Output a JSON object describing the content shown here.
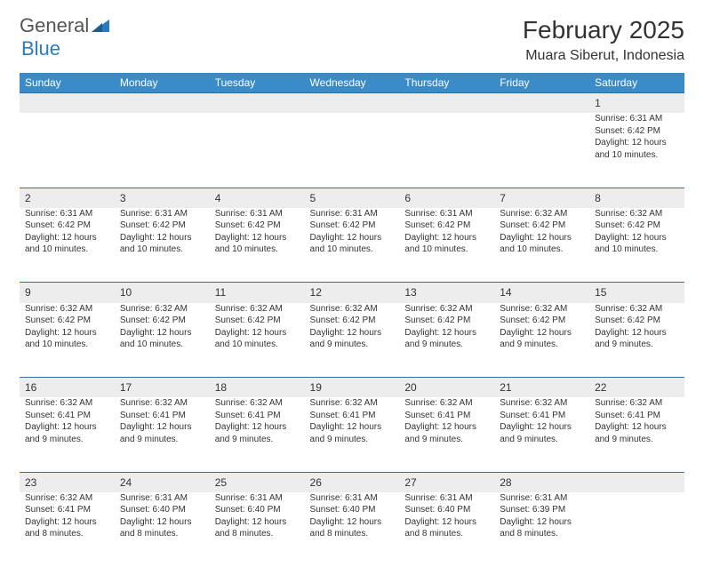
{
  "brand": {
    "part1": "General",
    "part2": "Blue"
  },
  "header": {
    "month_year": "February 2025",
    "location": "Muara Siberut, Indonesia"
  },
  "colors": {
    "header_bg": "#3b8bc9",
    "header_text": "#ffffff",
    "daynum_bg": "#ededed",
    "row_border": "#2f6fa5",
    "text": "#333333",
    "brand_blue": "#2b7bbf"
  },
  "weekdays": [
    "Sunday",
    "Monday",
    "Tuesday",
    "Wednesday",
    "Thursday",
    "Friday",
    "Saturday"
  ],
  "weeks": [
    {
      "nums": [
        "",
        "",
        "",
        "",
        "",
        "",
        "1"
      ],
      "cells": [
        null,
        null,
        null,
        null,
        null,
        null,
        {
          "sunrise": "Sunrise: 6:31 AM",
          "sunset": "Sunset: 6:42 PM",
          "daylight1": "Daylight: 12 hours",
          "daylight2": "and 10 minutes."
        }
      ]
    },
    {
      "nums": [
        "2",
        "3",
        "4",
        "5",
        "6",
        "7",
        "8"
      ],
      "cells": [
        {
          "sunrise": "Sunrise: 6:31 AM",
          "sunset": "Sunset: 6:42 PM",
          "daylight1": "Daylight: 12 hours",
          "daylight2": "and 10 minutes."
        },
        {
          "sunrise": "Sunrise: 6:31 AM",
          "sunset": "Sunset: 6:42 PM",
          "daylight1": "Daylight: 12 hours",
          "daylight2": "and 10 minutes."
        },
        {
          "sunrise": "Sunrise: 6:31 AM",
          "sunset": "Sunset: 6:42 PM",
          "daylight1": "Daylight: 12 hours",
          "daylight2": "and 10 minutes."
        },
        {
          "sunrise": "Sunrise: 6:31 AM",
          "sunset": "Sunset: 6:42 PM",
          "daylight1": "Daylight: 12 hours",
          "daylight2": "and 10 minutes."
        },
        {
          "sunrise": "Sunrise: 6:31 AM",
          "sunset": "Sunset: 6:42 PM",
          "daylight1": "Daylight: 12 hours",
          "daylight2": "and 10 minutes."
        },
        {
          "sunrise": "Sunrise: 6:32 AM",
          "sunset": "Sunset: 6:42 PM",
          "daylight1": "Daylight: 12 hours",
          "daylight2": "and 10 minutes."
        },
        {
          "sunrise": "Sunrise: 6:32 AM",
          "sunset": "Sunset: 6:42 PM",
          "daylight1": "Daylight: 12 hours",
          "daylight2": "and 10 minutes."
        }
      ]
    },
    {
      "nums": [
        "9",
        "10",
        "11",
        "12",
        "13",
        "14",
        "15"
      ],
      "cells": [
        {
          "sunrise": "Sunrise: 6:32 AM",
          "sunset": "Sunset: 6:42 PM",
          "daylight1": "Daylight: 12 hours",
          "daylight2": "and 10 minutes."
        },
        {
          "sunrise": "Sunrise: 6:32 AM",
          "sunset": "Sunset: 6:42 PM",
          "daylight1": "Daylight: 12 hours",
          "daylight2": "and 10 minutes."
        },
        {
          "sunrise": "Sunrise: 6:32 AM",
          "sunset": "Sunset: 6:42 PM",
          "daylight1": "Daylight: 12 hours",
          "daylight2": "and 10 minutes."
        },
        {
          "sunrise": "Sunrise: 6:32 AM",
          "sunset": "Sunset: 6:42 PM",
          "daylight1": "Daylight: 12 hours",
          "daylight2": "and 9 minutes."
        },
        {
          "sunrise": "Sunrise: 6:32 AM",
          "sunset": "Sunset: 6:42 PM",
          "daylight1": "Daylight: 12 hours",
          "daylight2": "and 9 minutes."
        },
        {
          "sunrise": "Sunrise: 6:32 AM",
          "sunset": "Sunset: 6:42 PM",
          "daylight1": "Daylight: 12 hours",
          "daylight2": "and 9 minutes."
        },
        {
          "sunrise": "Sunrise: 6:32 AM",
          "sunset": "Sunset: 6:42 PM",
          "daylight1": "Daylight: 12 hours",
          "daylight2": "and 9 minutes."
        }
      ]
    },
    {
      "nums": [
        "16",
        "17",
        "18",
        "19",
        "20",
        "21",
        "22"
      ],
      "cells": [
        {
          "sunrise": "Sunrise: 6:32 AM",
          "sunset": "Sunset: 6:41 PM",
          "daylight1": "Daylight: 12 hours",
          "daylight2": "and 9 minutes."
        },
        {
          "sunrise": "Sunrise: 6:32 AM",
          "sunset": "Sunset: 6:41 PM",
          "daylight1": "Daylight: 12 hours",
          "daylight2": "and 9 minutes."
        },
        {
          "sunrise": "Sunrise: 6:32 AM",
          "sunset": "Sunset: 6:41 PM",
          "daylight1": "Daylight: 12 hours",
          "daylight2": "and 9 minutes."
        },
        {
          "sunrise": "Sunrise: 6:32 AM",
          "sunset": "Sunset: 6:41 PM",
          "daylight1": "Daylight: 12 hours",
          "daylight2": "and 9 minutes."
        },
        {
          "sunrise": "Sunrise: 6:32 AM",
          "sunset": "Sunset: 6:41 PM",
          "daylight1": "Daylight: 12 hours",
          "daylight2": "and 9 minutes."
        },
        {
          "sunrise": "Sunrise: 6:32 AM",
          "sunset": "Sunset: 6:41 PM",
          "daylight1": "Daylight: 12 hours",
          "daylight2": "and 9 minutes."
        },
        {
          "sunrise": "Sunrise: 6:32 AM",
          "sunset": "Sunset: 6:41 PM",
          "daylight1": "Daylight: 12 hours",
          "daylight2": "and 9 minutes."
        }
      ]
    },
    {
      "nums": [
        "23",
        "24",
        "25",
        "26",
        "27",
        "28",
        ""
      ],
      "cells": [
        {
          "sunrise": "Sunrise: 6:32 AM",
          "sunset": "Sunset: 6:41 PM",
          "daylight1": "Daylight: 12 hours",
          "daylight2": "and 8 minutes."
        },
        {
          "sunrise": "Sunrise: 6:31 AM",
          "sunset": "Sunset: 6:40 PM",
          "daylight1": "Daylight: 12 hours",
          "daylight2": "and 8 minutes."
        },
        {
          "sunrise": "Sunrise: 6:31 AM",
          "sunset": "Sunset: 6:40 PM",
          "daylight1": "Daylight: 12 hours",
          "daylight2": "and 8 minutes."
        },
        {
          "sunrise": "Sunrise: 6:31 AM",
          "sunset": "Sunset: 6:40 PM",
          "daylight1": "Daylight: 12 hours",
          "daylight2": "and 8 minutes."
        },
        {
          "sunrise": "Sunrise: 6:31 AM",
          "sunset": "Sunset: 6:40 PM",
          "daylight1": "Daylight: 12 hours",
          "daylight2": "and 8 minutes."
        },
        {
          "sunrise": "Sunrise: 6:31 AM",
          "sunset": "Sunset: 6:39 PM",
          "daylight1": "Daylight: 12 hours",
          "daylight2": "and 8 minutes."
        },
        null
      ]
    }
  ]
}
